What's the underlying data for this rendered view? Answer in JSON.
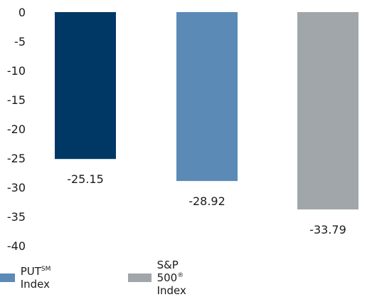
{
  "chart_data": {
    "type": "bar",
    "title": "",
    "xlabel": "",
    "ylabel": "",
    "ylim": [
      -40,
      0
    ],
    "yticks": [
      0,
      -5,
      -10,
      -15,
      -20,
      -25,
      -30,
      -35,
      -40
    ],
    "grid": false,
    "categories": [
      "",
      "",
      ""
    ],
    "values": [
      -25.15,
      -28.92,
      -33.79
    ],
    "labels": [
      "-25.15",
      "-28.92",
      "-33.79"
    ],
    "colors": [
      "#003865",
      "#5b8ab6",
      "#a0a6a9"
    ],
    "legend_placement": "bottom",
    "legend": [
      {
        "text": "PUT",
        "sup": "SM",
        "suffix": " Index",
        "color": "#5b8ab6"
      },
      {
        "text": "S&P 500",
        "sup": "®",
        "suffix": " Index",
        "color": "#a0a6a9"
      }
    ]
  }
}
